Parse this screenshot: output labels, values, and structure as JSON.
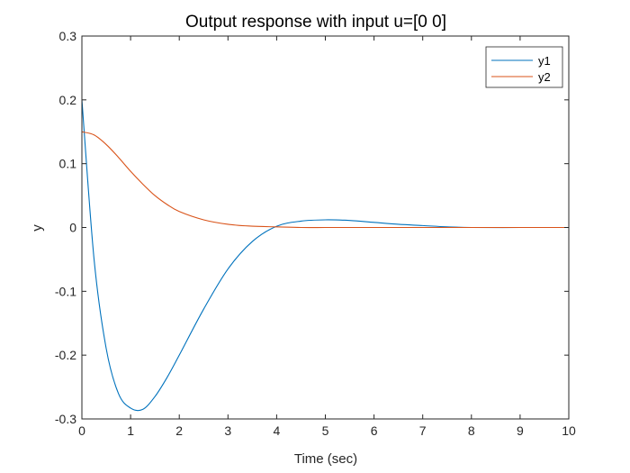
{
  "chart_data": {
    "type": "line",
    "title": "Output response with input u=[0 0]",
    "xlabel": "Time (sec)",
    "ylabel": "y",
    "xlim": [
      0,
      10
    ],
    "ylim": [
      -0.3,
      0.3
    ],
    "x_ticks": [
      "0",
      "1",
      "2",
      "3",
      "4",
      "5",
      "6",
      "7",
      "8",
      "9",
      "10"
    ],
    "y_ticks": [
      "-0.3",
      "-0.2",
      "-0.1",
      "0",
      "0.1",
      "0.2",
      "0.3"
    ],
    "grid": false,
    "legend_position": "top-right",
    "x": [
      0,
      0.25,
      0.5,
      0.75,
      1.0,
      1.25,
      1.5,
      1.75,
      2.0,
      2.5,
      3.0,
      3.5,
      4.0,
      4.5,
      5.0,
      5.5,
      6.0,
      6.5,
      7.0,
      7.5,
      8.0,
      9.0,
      10.0
    ],
    "series": [
      {
        "name": "y1",
        "color": "#0072BD",
        "values": [
          0.2,
          -0.05,
          -0.19,
          -0.26,
          -0.283,
          -0.285,
          -0.265,
          -0.235,
          -0.2,
          -0.128,
          -0.065,
          -0.022,
          0.002,
          0.01,
          0.012,
          0.011,
          0.008,
          0.005,
          0.003,
          0.001,
          0.0,
          0.0,
          0.0
        ]
      },
      {
        "name": "y2",
        "color": "#D95319",
        "values": [
          0.15,
          0.145,
          0.13,
          0.11,
          0.088,
          0.068,
          0.05,
          0.036,
          0.025,
          0.012,
          0.005,
          0.002,
          0.001,
          0.0,
          0.0,
          0.0,
          0.0,
          0.0,
          0.0,
          0.0,
          0.0,
          0.0,
          0.0
        ]
      }
    ]
  }
}
